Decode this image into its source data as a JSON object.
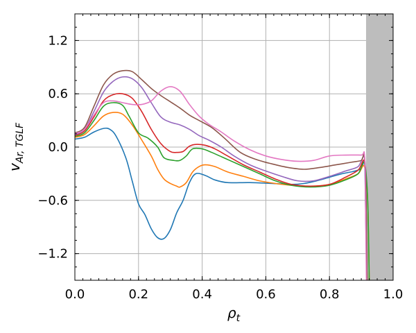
{
  "chart_data": {
    "type": "line",
    "title": "",
    "xlabel": "ρ",
    "xlabel_sub": "t",
    "ylabel": "v",
    "ylabel_sub": "Ar, TGLF",
    "xlim": [
      0.0,
      1.0
    ],
    "ylim": [
      -1.5,
      1.5
    ],
    "xticks": [
      0.0,
      0.2,
      0.4,
      0.6,
      0.8,
      1.0
    ],
    "xtick_labels": [
      "0.0",
      "0.2",
      "0.4",
      "0.6",
      "0.8",
      "1.0"
    ],
    "yticks": [
      -1.2,
      -0.6,
      0.0,
      0.6,
      1.2
    ],
    "ytick_labels": [
      "−1.2",
      "−0.6",
      "0.0",
      "0.6",
      "1.2"
    ],
    "grid": true,
    "legend": "none",
    "shaded_region": {
      "x0": 0.915,
      "x1": 1.0,
      "color": "#bdbdbd"
    },
    "series": [
      {
        "color": "#1f77b4",
        "points": [
          [
            0.0,
            0.09
          ],
          [
            0.03,
            0.11
          ],
          [
            0.06,
            0.17
          ],
          [
            0.09,
            0.21
          ],
          [
            0.11,
            0.2
          ],
          [
            0.13,
            0.12
          ],
          [
            0.16,
            -0.12
          ],
          [
            0.18,
            -0.38
          ],
          [
            0.2,
            -0.64
          ],
          [
            0.22,
            -0.76
          ],
          [
            0.24,
            -0.92
          ],
          [
            0.26,
            -1.02
          ],
          [
            0.28,
            -1.03
          ],
          [
            0.3,
            -0.93
          ],
          [
            0.32,
            -0.74
          ],
          [
            0.34,
            -0.6
          ],
          [
            0.36,
            -0.4
          ],
          [
            0.38,
            -0.3
          ],
          [
            0.41,
            -0.32
          ],
          [
            0.44,
            -0.37
          ],
          [
            0.48,
            -0.4
          ],
          [
            0.55,
            -0.4
          ],
          [
            0.62,
            -0.41
          ],
          [
            0.68,
            -0.42
          ],
          [
            0.72,
            -0.41
          ],
          [
            0.76,
            -0.38
          ],
          [
            0.8,
            -0.34
          ],
          [
            0.84,
            -0.3
          ],
          [
            0.88,
            -0.27
          ],
          [
            0.9,
            -0.24
          ],
          [
            0.91,
            -0.18
          ],
          [
            0.913,
            -0.6
          ],
          [
            0.917,
            -1.5
          ]
        ]
      },
      {
        "color": "#ff7f0e",
        "points": [
          [
            0.0,
            0.11
          ],
          [
            0.03,
            0.14
          ],
          [
            0.06,
            0.24
          ],
          [
            0.09,
            0.35
          ],
          [
            0.12,
            0.39
          ],
          [
            0.15,
            0.37
          ],
          [
            0.18,
            0.25
          ],
          [
            0.21,
            0.08
          ],
          [
            0.24,
            -0.1
          ],
          [
            0.26,
            -0.25
          ],
          [
            0.28,
            -0.36
          ],
          [
            0.3,
            -0.41
          ],
          [
            0.32,
            -0.44
          ],
          [
            0.33,
            -0.45
          ],
          [
            0.35,
            -0.4
          ],
          [
            0.37,
            -0.28
          ],
          [
            0.39,
            -0.22
          ],
          [
            0.41,
            -0.2
          ],
          [
            0.44,
            -0.22
          ],
          [
            0.48,
            -0.28
          ],
          [
            0.53,
            -0.33
          ],
          [
            0.58,
            -0.38
          ],
          [
            0.63,
            -0.41
          ],
          [
            0.68,
            -0.43
          ],
          [
            0.74,
            -0.44
          ],
          [
            0.8,
            -0.42
          ],
          [
            0.85,
            -0.36
          ],
          [
            0.89,
            -0.3
          ],
          [
            0.91,
            -0.22
          ],
          [
            0.92,
            -0.6
          ],
          [
            0.925,
            -1.5
          ]
        ]
      },
      {
        "color": "#2ca02c",
        "points": [
          [
            0.0,
            0.12
          ],
          [
            0.03,
            0.16
          ],
          [
            0.06,
            0.3
          ],
          [
            0.09,
            0.46
          ],
          [
            0.12,
            0.5
          ],
          [
            0.15,
            0.47
          ],
          [
            0.17,
            0.35
          ],
          [
            0.2,
            0.16
          ],
          [
            0.23,
            0.1
          ],
          [
            0.26,
            0.0
          ],
          [
            0.28,
            -0.12
          ],
          [
            0.31,
            -0.15
          ],
          [
            0.33,
            -0.15
          ],
          [
            0.35,
            -0.1
          ],
          [
            0.37,
            -0.02
          ],
          [
            0.4,
            -0.02
          ],
          [
            0.43,
            -0.06
          ],
          [
            0.48,
            -0.14
          ],
          [
            0.53,
            -0.22
          ],
          [
            0.58,
            -0.3
          ],
          [
            0.63,
            -0.38
          ],
          [
            0.68,
            -0.43
          ],
          [
            0.74,
            -0.45
          ],
          [
            0.8,
            -0.43
          ],
          [
            0.85,
            -0.37
          ],
          [
            0.89,
            -0.3
          ],
          [
            0.91,
            -0.18
          ],
          [
            0.92,
            -0.6
          ],
          [
            0.925,
            -1.5
          ]
        ]
      },
      {
        "color": "#d62728",
        "points": [
          [
            0.0,
            0.13
          ],
          [
            0.03,
            0.18
          ],
          [
            0.06,
            0.34
          ],
          [
            0.09,
            0.52
          ],
          [
            0.12,
            0.59
          ],
          [
            0.15,
            0.6
          ],
          [
            0.18,
            0.55
          ],
          [
            0.21,
            0.4
          ],
          [
            0.24,
            0.2
          ],
          [
            0.27,
            0.04
          ],
          [
            0.3,
            -0.05
          ],
          [
            0.32,
            -0.06
          ],
          [
            0.34,
            -0.05
          ],
          [
            0.36,
            0.01
          ],
          [
            0.38,
            0.03
          ],
          [
            0.41,
            0.02
          ],
          [
            0.44,
            -0.02
          ],
          [
            0.48,
            -0.1
          ],
          [
            0.53,
            -0.2
          ],
          [
            0.58,
            -0.28
          ],
          [
            0.63,
            -0.36
          ],
          [
            0.68,
            -0.42
          ],
          [
            0.74,
            -0.44
          ],
          [
            0.8,
            -0.42
          ],
          [
            0.85,
            -0.34
          ],
          [
            0.89,
            -0.26
          ],
          [
            0.91,
            -0.16
          ],
          [
            0.915,
            -0.6
          ],
          [
            0.918,
            -1.5
          ]
        ]
      },
      {
        "color": "#9467bd",
        "points": [
          [
            0.0,
            0.14
          ],
          [
            0.03,
            0.2
          ],
          [
            0.06,
            0.4
          ],
          [
            0.09,
            0.62
          ],
          [
            0.12,
            0.74
          ],
          [
            0.15,
            0.79
          ],
          [
            0.18,
            0.77
          ],
          [
            0.21,
            0.67
          ],
          [
            0.24,
            0.5
          ],
          [
            0.27,
            0.34
          ],
          [
            0.3,
            0.28
          ],
          [
            0.33,
            0.25
          ],
          [
            0.36,
            0.2
          ],
          [
            0.39,
            0.13
          ],
          [
            0.42,
            0.08
          ],
          [
            0.46,
            0.0
          ],
          [
            0.5,
            -0.1
          ],
          [
            0.55,
            -0.2
          ],
          [
            0.6,
            -0.27
          ],
          [
            0.65,
            -0.33
          ],
          [
            0.7,
            -0.38
          ],
          [
            0.75,
            -0.38
          ],
          [
            0.8,
            -0.33
          ],
          [
            0.85,
            -0.27
          ],
          [
            0.89,
            -0.22
          ],
          [
            0.91,
            -0.12
          ],
          [
            0.915,
            -0.6
          ],
          [
            0.918,
            -1.5
          ]
        ]
      },
      {
        "color": "#8c564b",
        "points": [
          [
            0.0,
            0.16
          ],
          [
            0.03,
            0.22
          ],
          [
            0.06,
            0.46
          ],
          [
            0.09,
            0.7
          ],
          [
            0.12,
            0.82
          ],
          [
            0.15,
            0.86
          ],
          [
            0.18,
            0.85
          ],
          [
            0.21,
            0.76
          ],
          [
            0.24,
            0.66
          ],
          [
            0.27,
            0.58
          ],
          [
            0.3,
            0.51
          ],
          [
            0.33,
            0.44
          ],
          [
            0.36,
            0.36
          ],
          [
            0.39,
            0.3
          ],
          [
            0.43,
            0.22
          ],
          [
            0.47,
            0.1
          ],
          [
            0.52,
            -0.06
          ],
          [
            0.57,
            -0.14
          ],
          [
            0.62,
            -0.19
          ],
          [
            0.67,
            -0.23
          ],
          [
            0.72,
            -0.25
          ],
          [
            0.77,
            -0.23
          ],
          [
            0.82,
            -0.2
          ],
          [
            0.87,
            -0.17
          ],
          [
            0.9,
            -0.15
          ],
          [
            0.91,
            -0.1
          ],
          [
            0.915,
            -0.6
          ],
          [
            0.918,
            -1.5
          ]
        ]
      },
      {
        "color": "#e377c2",
        "points": [
          [
            0.0,
            0.15
          ],
          [
            0.03,
            0.2
          ],
          [
            0.06,
            0.36
          ],
          [
            0.09,
            0.5
          ],
          [
            0.12,
            0.52
          ],
          [
            0.15,
            0.5
          ],
          [
            0.18,
            0.48
          ],
          [
            0.21,
            0.48
          ],
          [
            0.24,
            0.52
          ],
          [
            0.27,
            0.63
          ],
          [
            0.3,
            0.68
          ],
          [
            0.33,
            0.63
          ],
          [
            0.36,
            0.48
          ],
          [
            0.39,
            0.35
          ],
          [
            0.42,
            0.26
          ],
          [
            0.46,
            0.17
          ],
          [
            0.5,
            0.07
          ],
          [
            0.55,
            -0.03
          ],
          [
            0.6,
            -0.1
          ],
          [
            0.65,
            -0.14
          ],
          [
            0.7,
            -0.16
          ],
          [
            0.75,
            -0.15
          ],
          [
            0.8,
            -0.1
          ],
          [
            0.85,
            -0.09
          ],
          [
            0.9,
            -0.09
          ],
          [
            0.91,
            -0.09
          ],
          [
            0.913,
            -0.6
          ],
          [
            0.916,
            -1.5
          ]
        ]
      }
    ]
  }
}
